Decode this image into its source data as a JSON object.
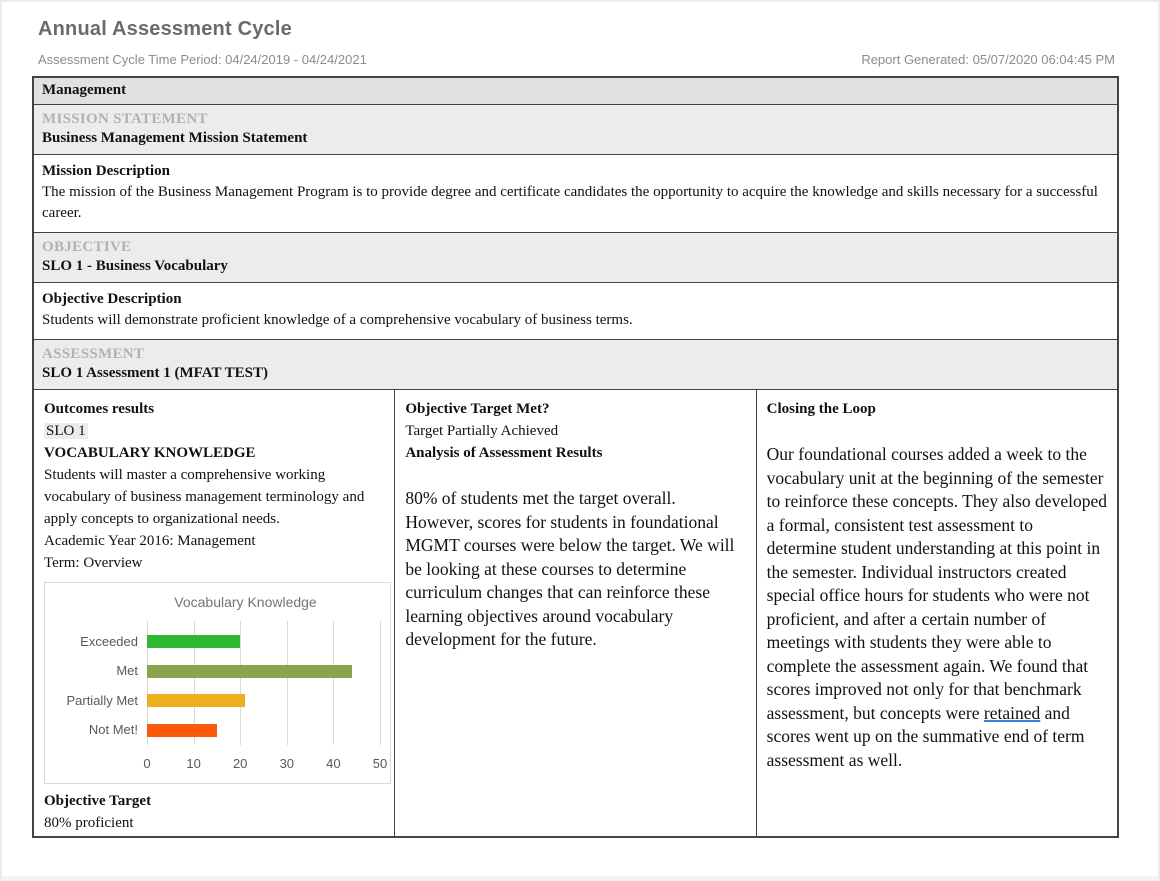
{
  "page": {
    "title": "Annual Assessment Cycle",
    "meta_left": "Assessment Cycle Time Period: 04/24/2019 - 04/24/2021",
    "meta_right": "Report Generated: 05/07/2020 06:04:45 PM"
  },
  "report": {
    "program": "Management",
    "mission": {
      "section_label": "MISSION STATEMENT",
      "title": "Business Management Mission Statement",
      "description_label": "Mission Description",
      "description": "The mission of the Business Management Program is to provide degree and certificate candidates the opportunity to acquire the knowledge and skills necessary for a successful career."
    },
    "objective": {
      "section_label": "OBJECTIVE",
      "title": "SLO 1 - Business Vocabulary",
      "description_label": "Objective Description",
      "description": "Students will demonstrate proficient knowledge of a comprehensive vocabulary of business terms."
    },
    "assessment": {
      "section_label": "ASSESSMENT",
      "title": "SLO 1 Assessment 1 (MFAT TEST)"
    },
    "outcomes": {
      "heading": "Outcomes results",
      "slo_tag": "SLO 1",
      "outcome_title": "VOCABULARY KNOWLEDGE",
      "outcome_description": "Students will master a comprehensive working vocabulary of business management terminology and apply concepts to organizational needs.",
      "academic_year": "Academic Year 2016: Management",
      "term": "Term: Overview",
      "objective_target_label": "Objective Target",
      "objective_target_value": "80% proficient"
    },
    "target_met": {
      "heading": "Objective Target Met?",
      "status": "Target Partially Achieved",
      "analysis_label": "Analysis of Assessment Results",
      "analysis": "80% of students met the target overall. However, scores for students in foundational MGMT courses were below the target. We will be looking at these courses to determine curriculum changes that can reinforce these learning objectives around vocabulary development for the future."
    },
    "closing": {
      "heading": "Closing the Loop",
      "text_before": "Our foundational courses added a week to the vocabulary unit at the beginning of the semester to reinforce these concepts. They also developed a formal, consistent test assessment to determine student understanding at this point in the semester. Individual instructors created special office hours for students who were not proficient, and after a certain number of meetings with students they were able to complete the assessment again. We found that scores improved not only for that benchmark assessment, but concepts were ",
      "underlined_word": "retained",
      "text_after": " and scores went up on the summative end of term assessment as well."
    }
  },
  "chart_data": {
    "type": "bar",
    "orientation": "horizontal",
    "title": "Vocabulary Knowledge",
    "categories": [
      "Exceeded",
      "Met",
      "Partially Met",
      "Not Met!"
    ],
    "values": [
      20,
      44,
      21,
      15
    ],
    "bar_colors": [
      "#2eb82e",
      "#8ca24c",
      "#ecb01f",
      "#fb5a0c"
    ],
    "xlabel": "",
    "ylabel": "",
    "xlim": [
      0,
      50
    ],
    "x_ticks": [
      0,
      10,
      20,
      30,
      40,
      50
    ],
    "grid": true,
    "legend": false,
    "title_color": "#737373",
    "label_color": "#595959"
  }
}
